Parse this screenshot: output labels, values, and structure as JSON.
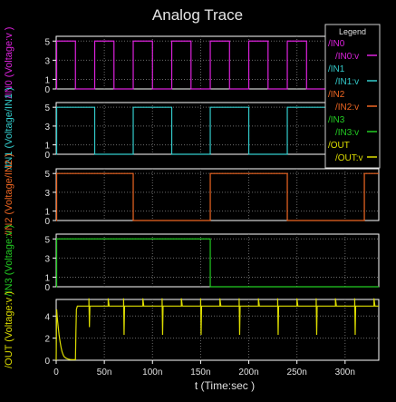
{
  "window": {
    "title": "Analog Trace",
    "background": "#000000",
    "plot_frame_color": "#ffffff",
    "grid_color": "#6a6a6a",
    "text_color": "#e0e0e0"
  },
  "legend": {
    "title": "Legend",
    "placement": "top-right",
    "entries": [
      {
        "group": "/IN0",
        "name": "/IN0:v",
        "color": "#dd22dd"
      },
      {
        "group": "/IN1",
        "name": "/IN1:v",
        "color": "#33cccc"
      },
      {
        "group": "/IN2",
        "name": "/IN2:v",
        "color": "#ee6622"
      },
      {
        "group": "/IN3",
        "name": "/IN3:v",
        "color": "#22cc22"
      },
      {
        "group": "/OUT",
        "name": "/OUT:v",
        "color": "#dddd00"
      }
    ]
  },
  "chart_data": {
    "type": "line",
    "title": "Analog Trace",
    "xlabel": "t (Time:sec )",
    "xlim": [
      0,
      335
    ],
    "x_unit": "ns",
    "x_ticks": [
      0,
      50,
      100,
      150,
      200,
      250,
      300
    ],
    "x_tick_labels": [
      "0",
      "50n",
      "100n",
      "150n",
      "200n",
      "250n",
      "300n"
    ],
    "grid": true,
    "legend_position": "top-right",
    "panels": [
      {
        "ylabel": "/IN0 (Voltage:v )",
        "ylim": [
          0,
          5.5
        ],
        "y_ticks": [
          0,
          1,
          3,
          5
        ],
        "y_tick_labels": [
          "0",
          "1",
          "3",
          "5"
        ],
        "series": [
          {
            "name": "/IN0:v",
            "color": "#dd22dd",
            "x": [
              0,
              0.5,
              0.5,
              20,
              20,
              40,
              40,
              60,
              60,
              80,
              80,
              100,
              100,
              120,
              120,
              140,
              140,
              160,
              160,
              180,
              180,
              200,
              200,
              220,
              220,
              240,
              240,
              260,
              260,
              280,
              280,
              300,
              300,
              320,
              320,
              335
            ],
            "y": [
              0,
              0,
              5,
              5,
              0,
              0,
              5,
              5,
              0,
              0,
              5,
              5,
              0,
              0,
              5,
              5,
              0,
              0,
              5,
              5,
              0,
              0,
              5,
              5,
              0,
              0,
              5,
              5,
              0,
              0,
              5,
              5,
              0,
              0,
              5,
              5
            ]
          }
        ]
      },
      {
        "ylabel": "/IN1 (Voltage/IN1 )",
        "ylim": [
          0,
          5.5
        ],
        "y_ticks": [
          0,
          1,
          3,
          5
        ],
        "y_tick_labels": [
          "0",
          "1",
          "3",
          "5"
        ],
        "series": [
          {
            "name": "/IN1:v",
            "color": "#33cccc",
            "x": [
              0,
              0.5,
              0.5,
              40,
              40,
              80,
              80,
              120,
              120,
              160,
              160,
              200,
              200,
              240,
              240,
              280,
              280,
              320,
              320,
              335
            ],
            "y": [
              0,
              0,
              5,
              5,
              0,
              0,
              5,
              5,
              0,
              0,
              5,
              5,
              0,
              0,
              5,
              5,
              0,
              0,
              5,
              5
            ]
          }
        ]
      },
      {
        "ylabel": "/IN2 (Voltage/IN2 )",
        "ylim": [
          0,
          5.5
        ],
        "y_ticks": [
          0,
          1,
          3,
          5
        ],
        "y_tick_labels": [
          "0",
          "1",
          "3",
          "5"
        ],
        "series": [
          {
            "name": "/IN2:v",
            "color": "#ee6622",
            "x": [
              0,
              0.5,
              0.5,
              80,
              80,
              160,
              160,
              240,
              240,
              320,
              320,
              335
            ],
            "y": [
              0,
              0,
              5,
              5,
              0,
              0,
              5,
              5,
              0,
              0,
              5,
              5
            ]
          }
        ]
      },
      {
        "ylabel": "/IN3 (Voltage:v )",
        "ylim": [
          0,
          5.5
        ],
        "y_ticks": [
          0,
          1,
          3,
          5
        ],
        "y_tick_labels": [
          "0",
          "1",
          "3",
          "5"
        ],
        "series": [
          {
            "name": "/IN3:v",
            "color": "#22cc22",
            "x": [
              0,
              0.5,
              0.5,
              160,
              160,
              335
            ],
            "y": [
              0,
              0,
              5,
              5,
              0,
              0
            ]
          }
        ]
      },
      {
        "ylabel": "/OUT (Voltage:v )",
        "ylim": [
          0,
          5.5
        ],
        "y_ticks": [
          0,
          2,
          4
        ],
        "y_tick_labels": [
          "0",
          "2",
          "4"
        ],
        "series": [
          {
            "name": "/OUT:v",
            "color": "#dddd00",
            "x": [
              0,
              0.5,
              1,
              2,
              3,
              4,
              5,
              6,
              7,
              8,
              10,
              12,
              14,
              16,
              18,
              20,
              20.5,
              21,
              22,
              24,
              30,
              34,
              34,
              34.5,
              35,
              40,
              50,
              54,
              54,
              55,
              60,
              70,
              70,
              70.5,
              71,
              80,
              90,
              90,
              91,
              100,
              110,
              110,
              110.5,
              111,
              120,
              130,
              130,
              131,
              140,
              150,
              150,
              150.5,
              151,
              160,
              170,
              170,
              171,
              180,
              190,
              190,
              190.5,
              191,
              200,
              210,
              210,
              211,
              220,
              230,
              230,
              230.5,
              231,
              240,
              250,
              250,
              251,
              260,
              270,
              270,
              270.5,
              271,
              280,
              290,
              290,
              291,
              300,
              310,
              310,
              310.5,
              311,
              320,
              330,
              330,
              331,
              335
            ],
            "y": [
              0,
              4.6,
              4.0,
              3.1,
              2.3,
              1.7,
              1.2,
              0.8,
              0.55,
              0.35,
              0.2,
              0.12,
              0.08,
              0.05,
              0.05,
              0.05,
              2.6,
              4.6,
              4.9,
              4.9,
              4.9,
              4.9,
              5.6,
              3.0,
              4.9,
              4.9,
              4.9,
              4.9,
              5.6,
              4.9,
              4.9,
              4.9,
              5.6,
              2.3,
              4.9,
              4.9,
              4.9,
              5.6,
              4.9,
              4.9,
              4.9,
              5.6,
              2.3,
              4.9,
              4.9,
              4.9,
              5.6,
              4.9,
              4.9,
              4.9,
              5.6,
              2.3,
              4.9,
              4.9,
              4.9,
              5.6,
              4.9,
              4.9,
              4.9,
              5.6,
              2.3,
              4.9,
              4.9,
              4.9,
              5.6,
              4.9,
              4.9,
              4.9,
              5.6,
              2.3,
              4.9,
              4.9,
              4.9,
              5.6,
              4.9,
              4.9,
              4.9,
              5.6,
              2.3,
              4.9,
              4.9,
              4.9,
              5.6,
              4.9,
              4.9,
              4.9,
              5.6,
              2.3,
              4.9,
              4.9,
              4.9,
              5.6,
              4.9,
              4.9
            ]
          }
        ]
      }
    ]
  }
}
